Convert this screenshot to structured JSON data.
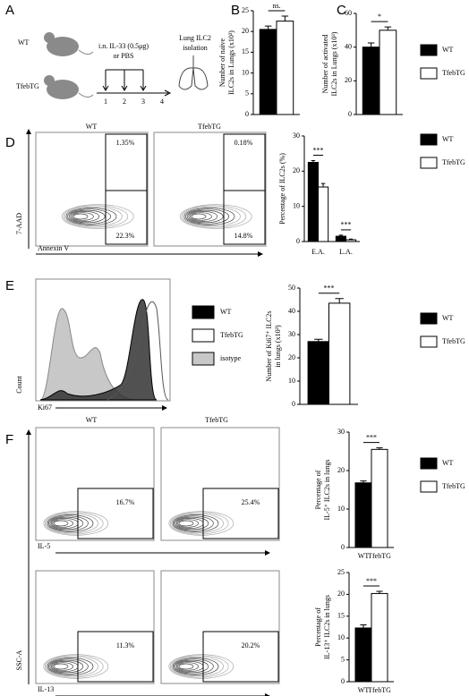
{
  "panel_labels": [
    "A",
    "B",
    "C",
    "D",
    "E",
    "F"
  ],
  "panel_a": {
    "groups": [
      "WT",
      "TfebTG"
    ],
    "treatment": [
      "i.n. IL-33 (0.5μg)",
      "or PBS"
    ],
    "days": [
      "1",
      "2",
      "3",
      "4"
    ],
    "readout": [
      "Lung ILC2",
      "isolation"
    ]
  },
  "panel_d": {
    "plot_titles": [
      "WT",
      "TfebTG"
    ],
    "gates": [
      "1.35%",
      "22.3%",
      "0.18%",
      "14.8%"
    ],
    "y_axis": "7-AAD",
    "x_axis": "Annexin V"
  },
  "panel_e": {
    "hist_legend": [
      "WT",
      "TfebTG",
      "isotype"
    ],
    "y_axis": "Count",
    "x_axis": "Ki67"
  },
  "panel_f": {
    "plot_titles": [
      "WT",
      "TfebTG"
    ],
    "gates": [
      "16.7%",
      "25.4%",
      "11.3%",
      "20.2%"
    ],
    "x_axes": [
      "IL-5",
      "IL-13"
    ],
    "y_axis": "SSC-A"
  },
  "chart_data": [
    {
      "type": "bar",
      "ylabel": [
        "Number of naïve",
        "ILC2s in Lungs (x10³)"
      ],
      "ylim": [
        0,
        25
      ],
      "yticks": [
        0,
        5,
        10,
        15,
        20,
        25
      ],
      "series": [
        {
          "name": "WT",
          "color": "#000000",
          "values": [
            20.5
          ],
          "errors": [
            0.8
          ]
        },
        {
          "name": "TfebTG",
          "color": "#ffffff",
          "values": [
            22.5
          ],
          "errors": [
            1.2
          ]
        }
      ],
      "annotations": [
        "ns."
      ]
    },
    {
      "type": "bar",
      "ylabel": [
        "Number of activated",
        "ILC2s in Lungs (x10³)"
      ],
      "ylim": [
        0,
        60
      ],
      "yticks": [
        0,
        20,
        40,
        60
      ],
      "series": [
        {
          "name": "WT",
          "color": "#000000",
          "values": [
            40
          ],
          "errors": [
            2.5
          ]
        },
        {
          "name": "TfebTG",
          "color": "#ffffff",
          "values": [
            50
          ],
          "errors": [
            2
          ]
        }
      ],
      "annotations": [
        "*"
      ]
    },
    {
      "type": "bar",
      "ylabel": [
        "Percentage of ILC2s (%)"
      ],
      "categories": [
        "E.A.",
        "L.A."
      ],
      "ylim": [
        0,
        30
      ],
      "yticks": [
        0,
        10,
        20,
        30
      ],
      "series": [
        {
          "name": "WT",
          "color": "#000000",
          "values": [
            22.5,
            1.5
          ],
          "errors": [
            0.5,
            0.3
          ]
        },
        {
          "name": "TfebTG",
          "color": "#ffffff",
          "values": [
            15.5,
            0.5
          ],
          "errors": [
            1,
            0.2
          ]
        }
      ],
      "annotations": [
        "***",
        "***"
      ]
    },
    {
      "type": "bar",
      "ylabel": [
        "Number of Ki67⁺ ILC2s",
        "in lungs (x10³)"
      ],
      "ylim": [
        0,
        50
      ],
      "yticks": [
        0,
        10,
        20,
        30,
        40,
        50
      ],
      "series": [
        {
          "name": "WT",
          "color": "#000000",
          "values": [
            27
          ],
          "errors": [
            1
          ]
        },
        {
          "name": "TfebTG",
          "color": "#ffffff",
          "values": [
            43.5
          ],
          "errors": [
            2
          ]
        }
      ],
      "annotations": [
        "***"
      ]
    },
    {
      "type": "bar",
      "ylabel": [
        "Percentage of",
        "IL-5⁺ ILC2s in lungs"
      ],
      "ylim": [
        0,
        30
      ],
      "yticks": [
        0,
        10,
        20,
        30
      ],
      "series": [
        {
          "name": "WT",
          "color": "#000000",
          "values": [
            16.8
          ],
          "errors": [
            0.5
          ]
        },
        {
          "name": "TfebTG",
          "color": "#ffffff",
          "values": [
            25.5
          ],
          "errors": [
            0.4
          ]
        }
      ],
      "annotations": [
        "***"
      ]
    },
    {
      "type": "bar",
      "ylabel": [
        "Percentage of",
        "IL-13⁺ ILC2s in lungs"
      ],
      "ylim": [
        0,
        25
      ],
      "yticks": [
        0,
        5,
        10,
        15,
        20,
        25
      ],
      "series": [
        {
          "name": "WT",
          "color": "#000000",
          "values": [
            12.3
          ],
          "errors": [
            0.7
          ]
        },
        {
          "name": "TfebTG",
          "color": "#ffffff",
          "values": [
            20.2
          ],
          "errors": [
            0.5
          ]
        }
      ],
      "annotations": [
        "***"
      ]
    }
  ]
}
